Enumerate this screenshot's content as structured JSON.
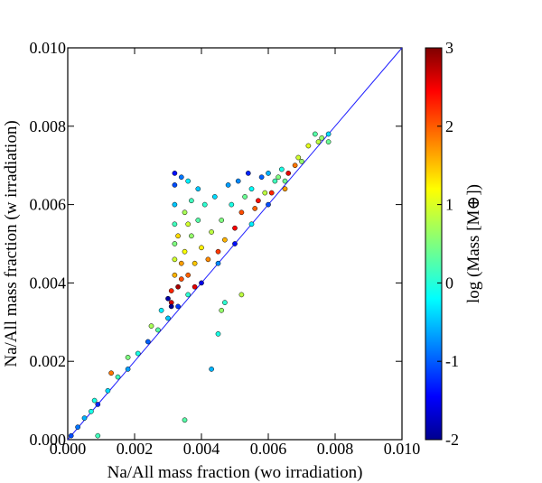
{
  "chart_data": {
    "type": "scatter",
    "title": "",
    "xlabel": "Na/All mass fraction (wo irradiation)",
    "ylabel": "Na/All mass fraction (w irradiation)",
    "xlim": [
      0,
      0.01
    ],
    "ylim": [
      0,
      0.01
    ],
    "xticks": [
      "0.000",
      "0.002",
      "0.004",
      "0.006",
      "0.008",
      "0.010"
    ],
    "yticks": [
      "0.000",
      "0.002",
      "0.004",
      "0.006",
      "0.008",
      "0.010"
    ],
    "grid": false,
    "reference_line": {
      "type": "y=x",
      "color": "#1f1fff"
    },
    "colorbar": {
      "label": "log (Mass [M⊕])",
      "colormap": "jet",
      "range": [
        -2,
        3
      ],
      "ticks": [
        "-2",
        "-1",
        "0",
        "1",
        "2",
        "3"
      ]
    },
    "points": [
      {
        "x": 0.0001,
        "y": 0.0001,
        "c": -1.0
      },
      {
        "x": 0.0003,
        "y": 0.00032,
        "c": -0.8
      },
      {
        "x": 0.0005,
        "y": 0.00055,
        "c": -0.5
      },
      {
        "x": 0.0007,
        "y": 0.00072,
        "c": 0.0
      },
      {
        "x": 0.0009,
        "y": 0.0009,
        "c": -1.2
      },
      {
        "x": 0.0012,
        "y": 0.00125,
        "c": -0.3
      },
      {
        "x": 0.0015,
        "y": 0.0016,
        "c": 0.2
      },
      {
        "x": 0.0018,
        "y": 0.0018,
        "c": -0.6
      },
      {
        "x": 0.0021,
        "y": 0.0022,
        "c": 0.0
      },
      {
        "x": 0.0024,
        "y": 0.0025,
        "c": -0.9
      },
      {
        "x": 0.0027,
        "y": 0.0028,
        "c": 0.3
      },
      {
        "x": 0.003,
        "y": 0.0031,
        "c": -0.4
      },
      {
        "x": 0.0033,
        "y": 0.0034,
        "c": -1.1
      },
      {
        "x": 0.0036,
        "y": 0.0037,
        "c": 0.1
      },
      {
        "x": 0.004,
        "y": 0.004,
        "c": -1.5
      },
      {
        "x": 0.0045,
        "y": 0.0045,
        "c": -0.7
      },
      {
        "x": 0.005,
        "y": 0.005,
        "c": -1.3
      },
      {
        "x": 0.0055,
        "y": 0.0055,
        "c": -0.2
      },
      {
        "x": 0.006,
        "y": 0.006,
        "c": -1.0
      },
      {
        "x": 0.0065,
        "y": 0.0066,
        "c": 0.4
      },
      {
        "x": 0.007,
        "y": 0.0071,
        "c": 0.6
      },
      {
        "x": 0.0075,
        "y": 0.0076,
        "c": 0.8
      },
      {
        "x": 0.0078,
        "y": 0.0078,
        "c": -0.3
      },
      {
        "x": 0.0008,
        "y": 0.001,
        "c": 0.0
      },
      {
        "x": 0.0013,
        "y": 0.0017,
        "c": 1.8
      },
      {
        "x": 0.0018,
        "y": 0.0021,
        "c": 0.5
      },
      {
        "x": 0.0025,
        "y": 0.0029,
        "c": 0.7
      },
      {
        "x": 0.0028,
        "y": 0.0033,
        "c": -0.2
      },
      {
        "x": 0.0031,
        "y": 0.0035,
        "c": 2.6
      },
      {
        "x": 0.0031,
        "y": 0.0038,
        "c": 2.2
      },
      {
        "x": 0.0032,
        "y": 0.0042,
        "c": 1.5
      },
      {
        "x": 0.0032,
        "y": 0.0046,
        "c": 0.9
      },
      {
        "x": 0.0032,
        "y": 0.005,
        "c": 0.5
      },
      {
        "x": 0.0032,
        "y": 0.0055,
        "c": 0.2
      },
      {
        "x": 0.0032,
        "y": 0.006,
        "c": -0.4
      },
      {
        "x": 0.0032,
        "y": 0.0065,
        "c": -1.0
      },
      {
        "x": 0.0032,
        "y": 0.0068,
        "c": -1.3
      },
      {
        "x": 0.0034,
        "y": 0.0067,
        "c": -0.8
      },
      {
        "x": 0.0036,
        "y": 0.0066,
        "c": -0.2
      },
      {
        "x": 0.0034,
        "y": 0.0045,
        "c": 1.6
      },
      {
        "x": 0.0035,
        "y": 0.0048,
        "c": 1.1
      },
      {
        "x": 0.0036,
        "y": 0.0042,
        "c": 1.9
      },
      {
        "x": 0.0037,
        "y": 0.0052,
        "c": 0.6
      },
      {
        "x": 0.0038,
        "y": 0.0045,
        "c": 1.4
      },
      {
        "x": 0.0039,
        "y": 0.0056,
        "c": 0.3
      },
      {
        "x": 0.004,
        "y": 0.0049,
        "c": 1.2
      },
      {
        "x": 0.0041,
        "y": 0.006,
        "c": 0.1
      },
      {
        "x": 0.0042,
        "y": 0.0046,
        "c": 1.7
      },
      {
        "x": 0.0043,
        "y": 0.0053,
        "c": 0.8
      },
      {
        "x": 0.0044,
        "y": 0.0062,
        "c": -0.3
      },
      {
        "x": 0.0045,
        "y": 0.0048,
        "c": 2.1
      },
      {
        "x": 0.0046,
        "y": 0.0056,
        "c": 0.5
      },
      {
        "x": 0.0048,
        "y": 0.0065,
        "c": -0.6
      },
      {
        "x": 0.005,
        "y": 0.0054,
        "c": 2.4
      },
      {
        "x": 0.0052,
        "y": 0.0058,
        "c": 2.0
      },
      {
        "x": 0.0053,
        "y": 0.0062,
        "c": 0.4
      },
      {
        "x": 0.0055,
        "y": 0.0064,
        "c": -0.1
      },
      {
        "x": 0.0057,
        "y": 0.0061,
        "c": 2.3
      },
      {
        "x": 0.0058,
        "y": 0.0067,
        "c": -0.9
      },
      {
        "x": 0.006,
        "y": 0.0068,
        "c": -0.5
      },
      {
        "x": 0.0062,
        "y": 0.0066,
        "c": 0.2
      },
      {
        "x": 0.0064,
        "y": 0.0069,
        "c": 0.0
      },
      {
        "x": 0.0066,
        "y": 0.0068,
        "c": 2.5
      },
      {
        "x": 0.0068,
        "y": 0.007,
        "c": 1.8
      },
      {
        "x": 0.0072,
        "y": 0.0075,
        "c": 1.0
      },
      {
        "x": 0.0074,
        "y": 0.0078,
        "c": 0.3
      },
      {
        "x": 0.0076,
        "y": 0.0077,
        "c": 0.6
      },
      {
        "x": 0.0078,
        "y": 0.0076,
        "c": 0.4
      },
      {
        "x": 0.0037,
        "y": 0.0061,
        "c": 0.2
      },
      {
        "x": 0.0039,
        "y": 0.0064,
        "c": -0.4
      },
      {
        "x": 0.0035,
        "y": 0.0058,
        "c": 0.7
      },
      {
        "x": 0.0033,
        "y": 0.0052,
        "c": 1.3
      },
      {
        "x": 0.0036,
        "y": 0.0055,
        "c": 0.9
      },
      {
        "x": 0.0047,
        "y": 0.0051,
        "c": 1.5
      },
      {
        "x": 0.0049,
        "y": 0.006,
        "c": 0.0
      },
      {
        "x": 0.0051,
        "y": 0.0066,
        "c": -0.7
      },
      {
        "x": 0.0054,
        "y": 0.0068,
        "c": -1.2
      },
      {
        "x": 0.0056,
        "y": 0.0059,
        "c": 1.9
      },
      {
        "x": 0.0059,
        "y": 0.0063,
        "c": 0.8
      },
      {
        "x": 0.0061,
        "y": 0.0063,
        "c": 2.2
      },
      {
        "x": 0.0063,
        "y": 0.0067,
        "c": 0.5
      },
      {
        "x": 0.0065,
        "y": 0.0064,
        "c": 1.6
      },
      {
        "x": 0.0069,
        "y": 0.0072,
        "c": 0.9
      },
      {
        "x": 0.0052,
        "y": 0.0037,
        "c": 0.8
      },
      {
        "x": 0.0047,
        "y": 0.0035,
        "c": 0.1
      },
      {
        "x": 0.0046,
        "y": 0.0033,
        "c": 0.6
      },
      {
        "x": 0.0045,
        "y": 0.0027,
        "c": 0.0
      },
      {
        "x": 0.0043,
        "y": 0.0018,
        "c": -0.5
      },
      {
        "x": 0.0035,
        "y": 0.0005,
        "c": 0.3
      },
      {
        "x": 0.0009,
        "y": 0.0001,
        "c": 0.2
      },
      {
        "x": 0.003,
        "y": 0.0036,
        "c": -1.8
      },
      {
        "x": 0.0031,
        "y": 0.0034,
        "c": -1.9
      },
      {
        "x": 0.0033,
        "y": 0.0039,
        "c": 2.8
      },
      {
        "x": 0.0034,
        "y": 0.0041,
        "c": 2.0
      },
      {
        "x": 0.0038,
        "y": 0.0039,
        "c": 2.5
      }
    ]
  }
}
